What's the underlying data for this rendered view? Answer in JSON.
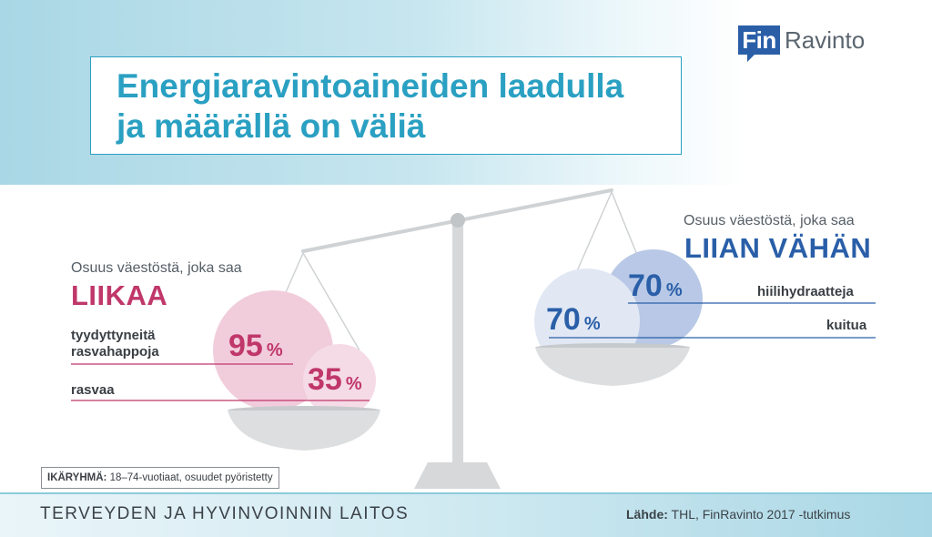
{
  "header": {
    "brand": {
      "part1": "Fin",
      "part2": "Ravinto"
    },
    "title_line1": "Energiaravintoaineiden laadulla",
    "title_line2": "ja määrällä on väliä"
  },
  "left_pan": {
    "lead": "Osuus väestöstä, joka saa",
    "heading": "LIIKAA",
    "color": "#c0376a",
    "items": [
      {
        "label_line1": "tyydyttyneitä",
        "label_line2": "rasvahappoja",
        "value": "95",
        "unit": "%"
      },
      {
        "label_line1": "rasvaa",
        "label_line2": "",
        "value": "35",
        "unit": "%"
      }
    ]
  },
  "right_pan": {
    "lead": "Osuus väestöstä, joka saa",
    "heading": "LIIAN VÄHÄN",
    "color": "#2a5fa8",
    "items": [
      {
        "label": "hiilihydraatteja",
        "value": "70",
        "unit": "%"
      },
      {
        "label": "kuitua",
        "value": "70",
        "unit": "%"
      }
    ]
  },
  "age_note": {
    "bold": "IKÄRYHMÄ:",
    "text": " 18–74-vuotiaat, osuudet pyöristetty"
  },
  "footer": {
    "organization": "TERVEYDEN JA HYVINVOINNIN LAITOS",
    "source_bold": "Lähde:",
    "source_text": " THL, FinRavinto 2017 -tutkimus"
  }
}
